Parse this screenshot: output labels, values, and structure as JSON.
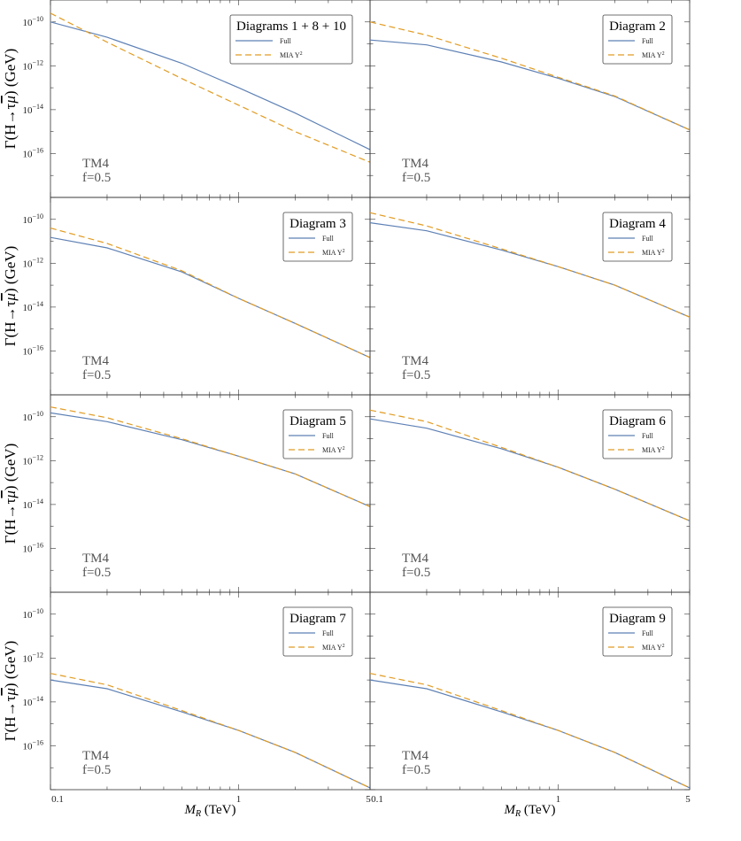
{
  "figure": {
    "ylabel_main": "Γ(H→τ",
    "ylabel_mu": "μ",
    "ylabel_unit": ") (GeV)",
    "xlabel_var": "M",
    "xlabel_sub": "R",
    "xlabel_unit": " (TeV)",
    "model_label": "TM4",
    "f_label": "f=0.5",
    "x_tick_labels": [
      "0.1",
      "1",
      "5"
    ],
    "y_tick_labels": [
      "10",
      "10",
      "10",
      "10"
    ],
    "y_tick_exponents": [
      "−10",
      "−12",
      "−14",
      "−16"
    ]
  },
  "legend": {
    "full_label": "Full",
    "mia_label": "MIA Y",
    "mia_sup": "2"
  },
  "colors": {
    "full": "#5e81b5",
    "mia": "#e19c24",
    "frame": "#333333"
  },
  "chart_data": [
    {
      "type": "line",
      "title": "Diagrams 1 + 8 + 10",
      "xscale": "log",
      "yscale": "log",
      "xlim": [
        0.1,
        5
      ],
      "ylim": [
        1e-18,
        1e-09
      ],
      "x": [
        0.1,
        0.2,
        0.5,
        1,
        2,
        5
      ],
      "series": [
        {
          "name": "Full",
          "values": [
            1e-10,
            2e-11,
            1.3e-12,
            1e-13,
            7e-15,
            1.5e-16
          ]
        },
        {
          "name": "MIA Y²",
          "values": [
            2.5e-10,
            1.2e-11,
            2.6e-13,
            1.6e-14,
            1e-15,
            4e-17
          ]
        }
      ]
    },
    {
      "type": "line",
      "title": "Diagram 2",
      "xscale": "log",
      "yscale": "log",
      "xlim": [
        0.1,
        5
      ],
      "ylim": [
        1e-18,
        1e-09
      ],
      "x": [
        0.1,
        0.2,
        0.5,
        1,
        2,
        5
      ],
      "series": [
        {
          "name": "Full",
          "values": [
            1.5e-11,
            9e-12,
            1.5e-12,
            2.7e-13,
            4e-14,
            1.2e-15
          ]
        },
        {
          "name": "MIA Y²",
          "values": [
            1e-10,
            2.5e-11,
            2.2e-12,
            3e-13,
            4.2e-14,
            1.2e-15
          ]
        }
      ]
    },
    {
      "type": "line",
      "title": "Diagram 3",
      "xscale": "log",
      "yscale": "log",
      "xlim": [
        0.1,
        5
      ],
      "ylim": [
        1e-18,
        1e-09
      ],
      "x": [
        0.1,
        0.2,
        0.5,
        1,
        2,
        5
      ],
      "series": [
        {
          "name": "Full",
          "values": [
            1.5e-11,
            5e-12,
            4e-13,
            2.5e-14,
            1.8e-15,
            5e-17
          ]
        },
        {
          "name": "MIA Y²",
          "values": [
            4e-11,
            8e-12,
            4.5e-13,
            2.5e-14,
            1.8e-15,
            5e-17
          ]
        }
      ]
    },
    {
      "type": "line",
      "title": "Diagram 4",
      "xscale": "log",
      "yscale": "log",
      "xlim": [
        0.1,
        5
      ],
      "ylim": [
        1e-18,
        1e-09
      ],
      "x": [
        0.1,
        0.2,
        0.5,
        1,
        2,
        5
      ],
      "series": [
        {
          "name": "Full",
          "values": [
            7e-11,
            3e-11,
            4e-12,
            7e-13,
            1e-13,
            3.5e-15
          ]
        },
        {
          "name": "MIA Y²",
          "values": [
            2e-10,
            5e-11,
            4.5e-12,
            7e-13,
            1e-13,
            3.5e-15
          ]
        }
      ]
    },
    {
      "type": "line",
      "title": "Diagram 5",
      "xscale": "log",
      "yscale": "log",
      "xlim": [
        0.1,
        5
      ],
      "ylim": [
        1e-18,
        1e-09
      ],
      "x": [
        0.1,
        0.2,
        0.5,
        1,
        2,
        5
      ],
      "series": [
        {
          "name": "Full",
          "values": [
            1.5e-10,
            6e-11,
            9e-12,
            1.6e-12,
            2.5e-13,
            8e-15
          ]
        },
        {
          "name": "MIA Y²",
          "values": [
            2.8e-10,
            9e-11,
            1e-11,
            1.6e-12,
            2.5e-13,
            8e-15
          ]
        }
      ]
    },
    {
      "type": "line",
      "title": "Diagram 6",
      "xscale": "log",
      "yscale": "log",
      "xlim": [
        0.1,
        5
      ],
      "ylim": [
        1e-18,
        1e-09
      ],
      "x": [
        0.1,
        0.2,
        0.5,
        1,
        2,
        5
      ],
      "series": [
        {
          "name": "Full",
          "values": [
            8e-11,
            3e-11,
            3.5e-12,
            5e-13,
            5e-14,
            1.8e-15
          ]
        },
        {
          "name": "MIA Y²",
          "values": [
            2e-10,
            6e-11,
            4e-12,
            5e-13,
            5e-14,
            1.8e-15
          ]
        }
      ]
    },
    {
      "type": "line",
      "title": "Diagram 7",
      "xscale": "log",
      "yscale": "log",
      "xlim": [
        0.1,
        5
      ],
      "ylim": [
        1e-18,
        1e-09
      ],
      "x": [
        0.1,
        0.2,
        0.5,
        1,
        2,
        5
      ],
      "series": [
        {
          "name": "Full",
          "values": [
            1e-13,
            4e-14,
            3.5e-15,
            5e-16,
            5e-17,
            1.2e-18
          ]
        },
        {
          "name": "MIA Y²",
          "values": [
            2e-13,
            6e-14,
            4e-15,
            5e-16,
            5e-17,
            1.2e-18
          ]
        }
      ]
    },
    {
      "type": "line",
      "title": "Diagram 9",
      "xscale": "log",
      "yscale": "log",
      "xlim": [
        0.1,
        5
      ],
      "ylim": [
        1e-18,
        1e-09
      ],
      "x": [
        0.1,
        0.2,
        0.5,
        1,
        2,
        5
      ],
      "series": [
        {
          "name": "Full",
          "values": [
            1e-13,
            4e-14,
            3.5e-15,
            5e-16,
            5e-17,
            1.2e-18
          ]
        },
        {
          "name": "MIA Y²",
          "values": [
            2e-13,
            6e-14,
            4e-15,
            5e-16,
            5e-17,
            1.2e-18
          ]
        }
      ]
    }
  ]
}
